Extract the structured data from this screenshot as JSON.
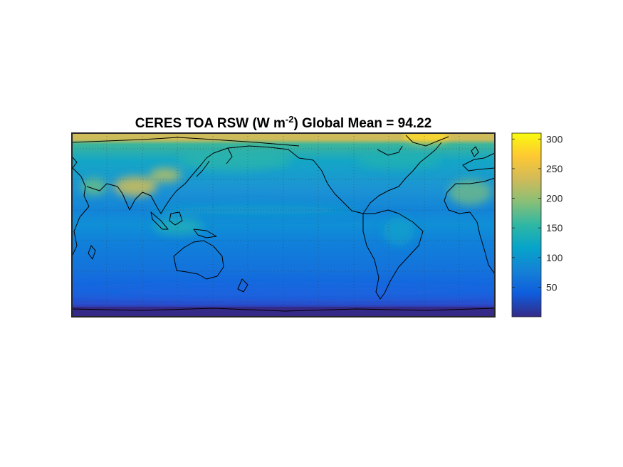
{
  "figure": {
    "title": {
      "prefix": "CERES TOA RSW (W m",
      "superscript": "-2",
      "suffix": ")  Global Mean = 94.22"
    }
  },
  "map": {
    "projection": "equirectangular",
    "center_longitude": 180,
    "gridlines": "dotted",
    "coastlines": true,
    "field": "CERES TOA reflected shortwave flux"
  },
  "colorbar": {
    "colormap": "parula",
    "min": 0,
    "max": 310,
    "ticks": [
      "300",
      "250",
      "200",
      "150",
      "100",
      "50"
    ],
    "tick_values": [
      300,
      250,
      200,
      150,
      100,
      50
    ],
    "colors": [
      "#352a87",
      "#0f5cdd",
      "#1481d6",
      "#06a4ca",
      "#2eb7a4",
      "#87bf77",
      "#d1bb59",
      "#fec832",
      "#f9fb0e"
    ]
  }
}
